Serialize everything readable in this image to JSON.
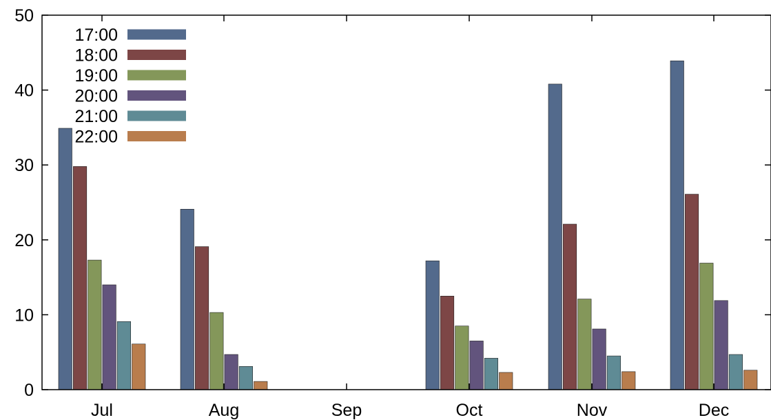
{
  "chart_data": {
    "type": "bar",
    "categories": [
      "Jul",
      "Aug",
      "Sep",
      "Oct",
      "Nov",
      "Dec"
    ],
    "series": [
      {
        "name": "17:00",
        "color": "#536a8c",
        "values": [
          34.9,
          24.1,
          0,
          17.2,
          40.8,
          43.9
        ]
      },
      {
        "name": "18:00",
        "color": "#7d4646",
        "values": [
          29.8,
          19.1,
          0,
          12.5,
          22.1,
          26.1
        ]
      },
      {
        "name": "19:00",
        "color": "#84975a",
        "values": [
          17.3,
          10.3,
          0,
          8.5,
          12.1,
          16.9
        ]
      },
      {
        "name": "20:00",
        "color": "#62547d",
        "values": [
          14.0,
          4.7,
          0,
          6.5,
          8.1,
          11.9
        ]
      },
      {
        "name": "21:00",
        "color": "#5f8b95",
        "values": [
          9.1,
          3.1,
          0,
          4.2,
          4.5,
          4.7
        ]
      },
      {
        "name": "22:00",
        "color": "#b97d4d",
        "values": [
          6.1,
          1.1,
          0,
          2.3,
          2.4,
          2.6
        ]
      }
    ],
    "yticks": [
      0,
      10,
      20,
      30,
      40,
      50
    ],
    "ylim": [
      0,
      50
    ],
    "title": "",
    "xlabel": "",
    "ylabel": "",
    "grid": false,
    "legend_position": "top-left"
  }
}
